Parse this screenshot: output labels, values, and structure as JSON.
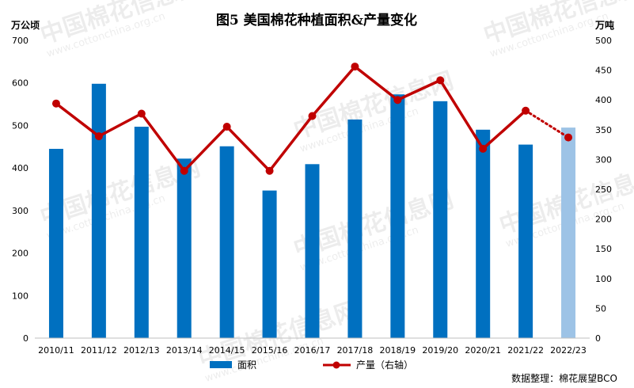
{
  "chart_data": {
    "type": "bar",
    "title": "图5  美国棉花种植面积&产量变化",
    "ylabel_left": "万公顷",
    "ylabel_right": "万吨",
    "ylim_left": [
      0,
      700
    ],
    "ylim_right": [
      0,
      500
    ],
    "yticks_left": [
      "0",
      "100",
      "200",
      "300",
      "400",
      "500",
      "600",
      "700"
    ],
    "yticks_right": [
      "0",
      "50",
      "100",
      "150",
      "200",
      "250",
      "300",
      "350",
      "400",
      "450",
      "500"
    ],
    "categories": [
      "2010/11",
      "2011/12",
      "2012/13",
      "2013/14",
      "2014/15",
      "2015/16",
      "2016/17",
      "2017/18",
      "2018/19",
      "2019/20",
      "2020/21",
      "2021/22",
      "2022/23"
    ],
    "series": [
      {
        "name": "面积",
        "type": "bar",
        "axis": "left",
        "values": [
          445,
          598,
          497,
          422,
          451,
          347,
          409,
          514,
          573,
          557,
          490,
          455,
          495
        ],
        "colors": [
          "#0070c0",
          "#0070c0",
          "#0070c0",
          "#0070c0",
          "#0070c0",
          "#0070c0",
          "#0070c0",
          "#0070c0",
          "#0070c0",
          "#0070c0",
          "#0070c0",
          "#0070c0",
          "#9dc3e6"
        ]
      },
      {
        "name": "产量（右轴）",
        "type": "line",
        "axis": "right",
        "values": [
          394,
          339,
          377,
          281,
          355,
          281,
          373,
          456,
          400,
          433,
          318,
          382,
          337
        ],
        "color": "#c00000",
        "dashed_last_segment": true
      }
    ],
    "legend_position": "bottom",
    "grid": false,
    "source": "数据整理：棉花展望BCO"
  },
  "watermark": {
    "text": "中国棉花信息网",
    "url": "www.cottonchina.org.cn"
  }
}
